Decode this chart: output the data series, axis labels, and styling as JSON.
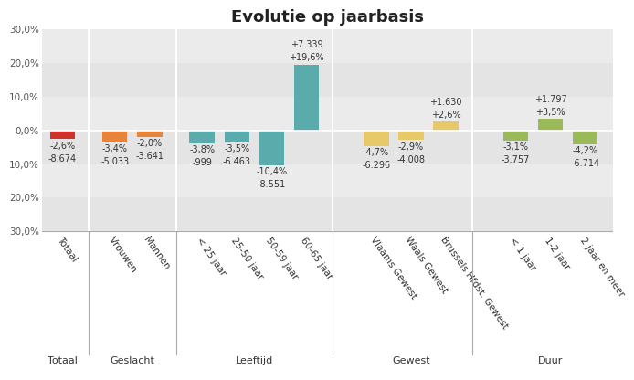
{
  "title": "Evolutie op jaarbasis",
  "categories": [
    "Totaal",
    "Vrouwen",
    "Mannen",
    "< 25 jaar",
    "25-50 jaar",
    "50-59 jaar",
    "60-65 jaar",
    "Vlaams Gewest",
    "Waals Gewest",
    "Brussels Hfdst. Gewest",
    "< 1 jaar",
    "1-2 jaar",
    "2 jaar en meer"
  ],
  "values_pct": [
    -2.6,
    -3.4,
    -2.0,
    -3.8,
    -3.5,
    -10.4,
    19.6,
    -4.7,
    -2.9,
    2.6,
    -3.1,
    3.5,
    -4.2
  ],
  "values_abs": [
    "-8.674",
    "-5.033",
    "-3.641",
    "-999",
    "-6.463",
    "-8.551",
    "+7.339",
    "-6.296",
    "-4.008",
    "+1.630",
    "-3.757",
    "+1.797",
    "-6.714"
  ],
  "labels_pct": [
    "-2,6%",
    "-3,4%",
    "-2,0%",
    "-3,8%",
    "-3,5%",
    "-10,4%",
    "+19,6%",
    "-4,7%",
    "-2,9%",
    "+2,6%",
    "-3,1%",
    "+3,5%",
    "-4,2%"
  ],
  "bar_colors": [
    "#d0312d",
    "#e8833a",
    "#e8833a",
    "#5aabac",
    "#5aabac",
    "#5aabac",
    "#5aabac",
    "#e8c96a",
    "#e8c96a",
    "#e8c96a",
    "#9aba5a",
    "#9aba5a",
    "#9aba5a"
  ],
  "x_positions": [
    0,
    1.5,
    2.5,
    4,
    5,
    6,
    7,
    9,
    10,
    11,
    13,
    14,
    15
  ],
  "group_dividers": [
    0.75,
    3.25,
    7.75,
    11.75
  ],
  "group_label_positions": [
    {
      "label": "Totaal",
      "x": 0
    },
    {
      "label": "Geslacht",
      "x": 2.0
    },
    {
      "label": "Leeftijd",
      "x": 5.5
    },
    {
      "label": "Gewest",
      "x": 10.0
    },
    {
      "label": "Duur",
      "x": 14.0
    }
  ],
  "ylim": [
    -30,
    30
  ],
  "yticks": [
    -30,
    -20,
    -10,
    0,
    10,
    20,
    30
  ],
  "ytick_labels": [
    "30,0%",
    "20,0%",
    "10,0%",
    "0,0%",
    "10,0%",
    "20,0%",
    "30,0%"
  ],
  "background_color": "#ffffff",
  "title_fontsize": 13,
  "annotation_fontsize": 7.0
}
